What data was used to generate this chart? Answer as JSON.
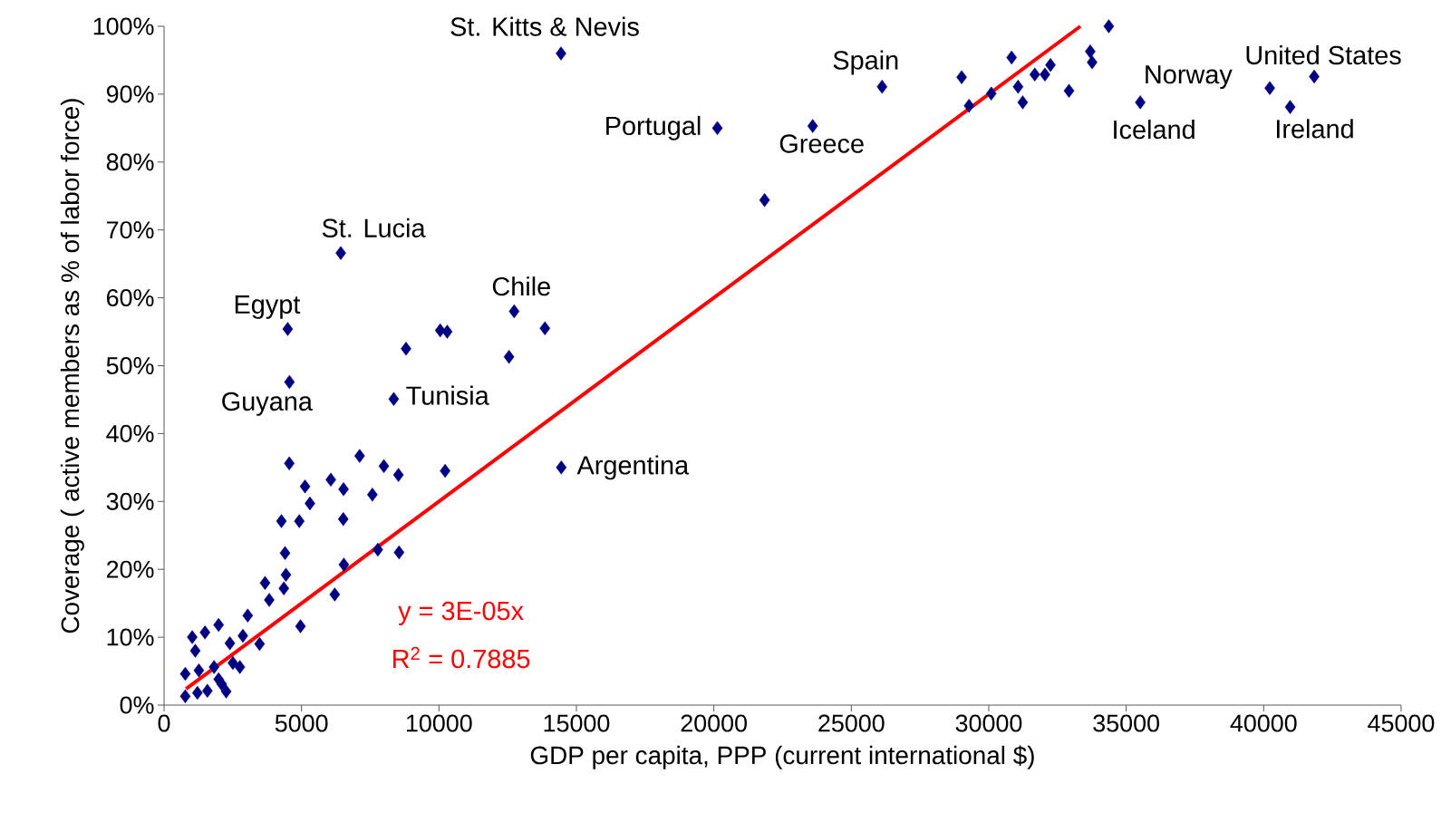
{
  "chart_data": {
    "type": "scatter",
    "xlabel": "GDP per capita, PPP (current international $)",
    "ylabel": "Coverage ( active members as % of labor force)",
    "xlim": [
      0,
      45000
    ],
    "xticks": [
      0,
      5000,
      10000,
      15000,
      20000,
      25000,
      30000,
      35000,
      40000,
      45000
    ],
    "ylim": [
      0,
      100
    ],
    "yticks": [
      {
        "value": 0,
        "label": "0%"
      },
      {
        "value": 10,
        "label": "10%"
      },
      {
        "value": 20,
        "label": "20%"
      },
      {
        "value": 30,
        "label": "30%"
      },
      {
        "value": 40,
        "label": "40%"
      },
      {
        "value": 50,
        "label": "50%"
      },
      {
        "value": 60,
        "label": "60%"
      },
      {
        "value": 70,
        "label": "70%"
      },
      {
        "value": 80,
        "label": "80%"
      },
      {
        "value": 90,
        "label": "90%"
      },
      {
        "value": 100,
        "label": "100%"
      }
    ],
    "grid": false,
    "series": [
      {
        "marker": "diamond",
        "color": "#000080",
        "x": [
          4556,
          7115,
          7997,
          8527,
          10225,
          14450,
          5129,
          6067,
          6530,
          7578,
          5306,
          4269,
          4920,
          6519,
          4401,
          7777,
          8549,
          6541,
          4434,
          3673,
          4357,
          3827,
          6210,
          3044,
          4964,
          1985,
          1489,
          1026,
          1136,
          2394,
          2868,
          3475,
          2504,
          2757,
          772,
          1268,
          1820,
          1985,
          2096,
          772,
          1213,
          1577,
          2261,
          6429,
          4498,
          4561,
          8356,
          8802,
          10046,
          10300,
          12736,
          13855,
          12548,
          14440,
          20128,
          23595,
          21845,
          26119,
          29014,
          29283,
          30091,
          30831,
          31067,
          31235,
          31673,
          32043,
          32245,
          32918,
          33692,
          33760,
          34366,
          35510,
          40222,
          40963,
          41838
        ],
        "values": [
          35.6,
          36.7,
          35.2,
          33.9,
          34.5,
          35.0,
          32.2,
          33.2,
          31.8,
          31.0,
          29.7,
          27.1,
          27.1,
          27.4,
          22.4,
          22.9,
          22.5,
          20.7,
          19.2,
          18.0,
          17.2,
          15.5,
          16.3,
          13.2,
          11.6,
          11.8,
          10.7,
          10.0,
          8.0,
          9.1,
          10.2,
          9.0,
          6.2,
          5.6,
          4.6,
          5.1,
          5.6,
          3.8,
          3.1,
          1.3,
          1.8,
          2.1,
          2.0,
          66.6,
          55.4,
          47.6,
          45.1,
          52.5,
          55.2,
          55.0,
          58.0,
          55.5,
          51.3,
          96.0,
          85.0,
          85.3,
          74.4,
          91.1,
          92.5,
          88.3,
          90.1,
          95.4,
          91.1,
          88.8,
          92.9,
          92.9,
          94.3,
          90.5,
          96.3,
          94.7,
          100,
          88.8,
          90.9,
          88.1,
          92.6
        ]
      },
      {
        "type": "line",
        "marker": "none",
        "color": "#ff0000",
        "x": [
          800,
          33333
        ],
        "values": [
          2.4,
          100
        ]
      }
    ],
    "annotations": [
      {
        "text": "St. Kitts & Nevis",
        "x": 14440,
        "y": 96.0
      },
      {
        "text": "Portugal",
        "x": 20128,
        "y": 85.0
      },
      {
        "text": "Greece",
        "x": 23595,
        "y": 85.3
      },
      {
        "text": "Spain",
        "x": 26119,
        "y": 91.1
      },
      {
        "text": "Norway",
        "x": 40222,
        "y": 90.9
      },
      {
        "text": "Iceland",
        "x": 35510,
        "y": 88.8
      },
      {
        "text": "United States",
        "x": 41838,
        "y": 92.6
      },
      {
        "text": "Ireland",
        "x": 40963,
        "y": 88.1
      },
      {
        "text": "St. Lucia",
        "x": 6429,
        "y": 66.6
      },
      {
        "text": "Egypt",
        "x": 4498,
        "y": 55.4
      },
      {
        "text": "Guyana",
        "x": 4561,
        "y": 47.6
      },
      {
        "text": "Tunisia",
        "x": 8356,
        "y": 45.1
      },
      {
        "text": "Chile",
        "x": 12736,
        "y": 58.0
      },
      {
        "text": "Argentina",
        "x": 14450,
        "y": 35.0
      },
      "y = 3E-05x",
      "R$^{2}$ = 0.7885"
    ]
  }
}
